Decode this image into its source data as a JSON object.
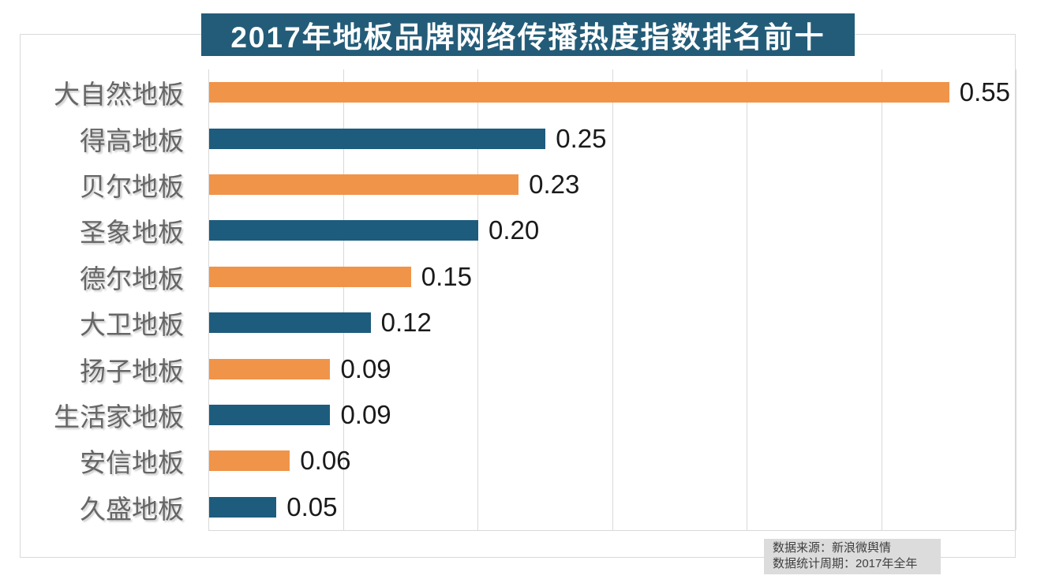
{
  "title": {
    "text": "2017年地板品牌网络传播热度指数排名前十"
  },
  "colors": {
    "title_bg": "#235C78",
    "bar_orange": "#F0944A",
    "bar_blue": "#1D5C7D",
    "gridline": "#D9D9D9",
    "category_label": "#666666",
    "value_label": "#1A1A1A",
    "source_bg": "#DCDCDC",
    "source_text": "#3F3F3F"
  },
  "chart_data": {
    "type": "bar",
    "orientation": "horizontal",
    "title": "2017年地板品牌网络传播热度指数排名前十",
    "categories": [
      "大自然地板",
      "得高地板",
      "贝尔地板",
      "圣象地板",
      "德尔地板",
      "大卫地板",
      "扬子地板",
      "生活家地板",
      "安信地板",
      "久盛地板"
    ],
    "values": [
      0.55,
      0.25,
      0.23,
      0.2,
      0.15,
      0.12,
      0.09,
      0.09,
      0.06,
      0.05
    ],
    "value_labels": [
      "0.55",
      "0.25",
      "0.23",
      "0.20",
      "0.15",
      "0.12",
      "0.09",
      "0.09",
      "0.06",
      "0.05"
    ],
    "bar_colors": [
      "#F0944A",
      "#1D5C7D",
      "#F0944A",
      "#1D5C7D",
      "#F0944A",
      "#1D5C7D",
      "#F0944A",
      "#1D5C7D",
      "#F0944A",
      "#1D5C7D"
    ],
    "xlabel": "",
    "ylabel": "",
    "xlim": [
      0,
      0.6
    ],
    "grid_interval": 0.1,
    "grid": "on",
    "legend": "none",
    "axis_tick_labels_visible": false
  },
  "source": {
    "line1": "数据来源：新浪微舆情",
    "line2": "数据统计周期：2017年全年"
  }
}
